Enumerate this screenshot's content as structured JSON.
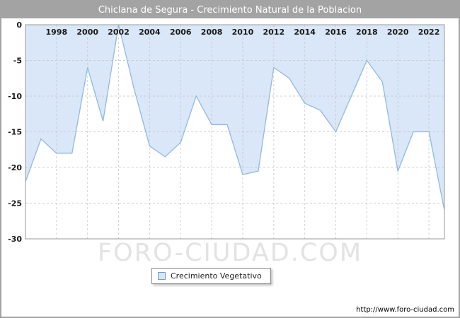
{
  "title": "Chiclana de Segura - Crecimiento Natural de la Poblacion",
  "legend": {
    "label": "Crecimiento Vegetativo"
  },
  "watermark": "FORO-CIUDAD.COM",
  "footer_url": "http://www.foro-ciudad.com",
  "colors": {
    "title_bar": "#a3a3a3",
    "title_text": "#ffffff",
    "area_fill": "#d9e7f8",
    "line_stroke": "#93b9dd",
    "grid_line": "#c9c9c9",
    "plot_border": "#9a9a9a",
    "tick_text": "#1a1a1a",
    "watermark_text": "#e3e3e3"
  },
  "chart_data": {
    "type": "area",
    "title": "Chiclana de Segura - Crecimiento Natural de la Poblacion",
    "xlabel": "",
    "ylabel": "",
    "x": [
      1996,
      1997,
      1998,
      1999,
      2000,
      2001,
      2002,
      2003,
      2004,
      2005,
      2006,
      2007,
      2008,
      2009,
      2010,
      2011,
      2012,
      2013,
      2014,
      2015,
      2016,
      2017,
      2018,
      2019,
      2020,
      2021,
      2022,
      2023
    ],
    "series": [
      {
        "name": "Crecimiento Vegetativo",
        "values": [
          -22,
          -16,
          -18,
          -18,
          -6,
          -13.5,
          0,
          -9,
          -17,
          -18.5,
          -16.5,
          -10,
          -14,
          -14,
          -21,
          -20.5,
          -6,
          -7.5,
          -11,
          -12,
          -15,
          -10,
          -5,
          -8,
          -20.5,
          -15,
          -15,
          -26
        ]
      }
    ],
    "xticks": [
      1998,
      2000,
      2002,
      2004,
      2006,
      2008,
      2010,
      2012,
      2014,
      2016,
      2018,
      2020,
      2022
    ],
    "yticks": [
      0,
      -5,
      -10,
      -15,
      -20,
      -25,
      -30
    ],
    "xlim": [
      1996,
      2023
    ],
    "ylim": [
      -30,
      0
    ],
    "grid": true,
    "baseline": 0,
    "legend_position": "bottom-left"
  }
}
